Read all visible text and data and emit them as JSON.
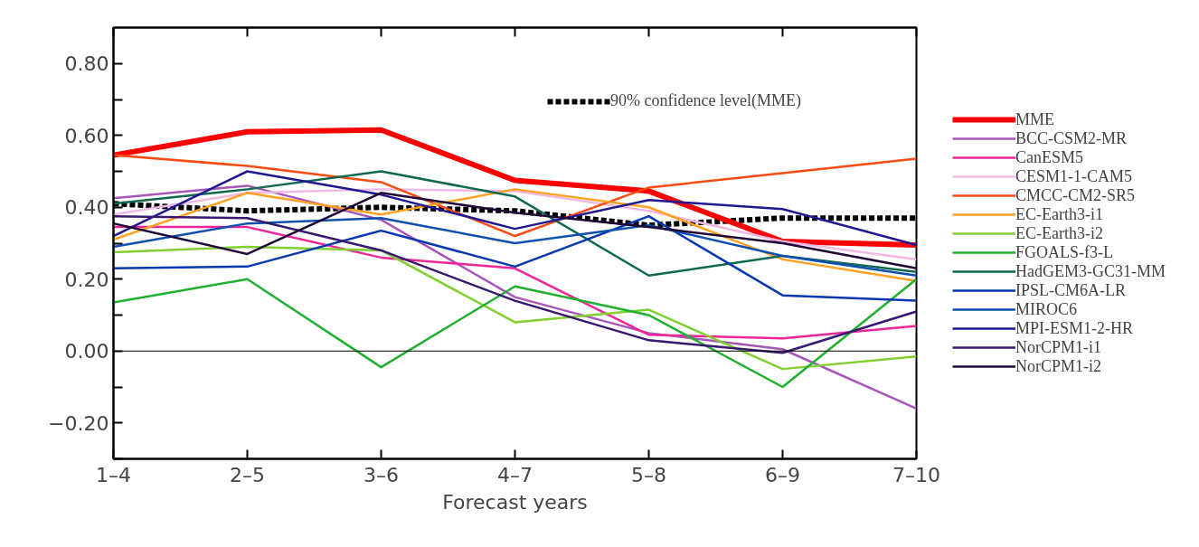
{
  "chart_data": {
    "type": "line",
    "xlabel": "Forecast years",
    "categories": [
      "1–4",
      "2–5",
      "3–6",
      "4–7",
      "5–8",
      "6–9",
      "7–10"
    ],
    "ylim": [
      -0.3,
      0.9
    ],
    "yticks": [
      {
        "value": -0.3,
        "label": null
      },
      {
        "value": -0.2,
        "label": "−0.20"
      },
      {
        "value": -0.1,
        "label": null
      },
      {
        "value": 0,
        "label": "0.00"
      },
      {
        "value": 0.1,
        "label": null
      },
      {
        "value": 0.2,
        "label": "0.20"
      },
      {
        "value": 0.3,
        "label": null
      },
      {
        "value": 0.4,
        "label": "0.40"
      },
      {
        "value": 0.5,
        "label": null
      },
      {
        "value": 0.6,
        "label": "0.60"
      },
      {
        "value": 0.7,
        "label": null
      },
      {
        "value": 0.8,
        "label": "0.80"
      }
    ],
    "ref_lines": [
      {
        "axis": "y",
        "value": 0,
        "color": "#000000"
      }
    ],
    "legend": "right",
    "grid": false,
    "marker": "none",
    "line_style": "solid",
    "series": [
      {
        "name": "90% confidence level(MME)",
        "color": "#000000",
        "line_style": "dashed",
        "values": [
          0.41,
          0.39,
          0.4,
          0.39,
          0.35,
          0.37,
          0.37
        ]
      },
      {
        "name": "MME",
        "color": "#ff0000",
        "values": [
          0.545,
          0.61,
          0.615,
          0.475,
          0.445,
          0.305,
          0.295
        ]
      },
      {
        "name": "BCC-CSM2-MR",
        "color": "#a656b8",
        "values": [
          0.425,
          0.46,
          0.365,
          0.15,
          0.05,
          0.005,
          -0.16
        ]
      },
      {
        "name": "CanESM5",
        "color": "#f0259a",
        "values": [
          0.345,
          0.345,
          0.26,
          0.23,
          0.045,
          0.035,
          0.07
        ]
      },
      {
        "name": "CESM1-1-CAM5",
        "color": "#f0b8e4",
        "values": [
          0.38,
          0.44,
          0.45,
          0.445,
          0.39,
          0.305,
          0.255
        ]
      },
      {
        "name": "CMCC-CM2-SR5",
        "color": "#ff4a10",
        "values": [
          0.545,
          0.515,
          0.47,
          0.32,
          0.455,
          0.495,
          0.535
        ]
      },
      {
        "name": "EC-Earth3-i1",
        "color": "#ffa020",
        "values": [
          0.31,
          0.44,
          0.38,
          0.45,
          0.4,
          0.255,
          0.195
        ]
      },
      {
        "name": "EC-Earth3-i2",
        "color": "#80d030",
        "values": [
          0.275,
          0.29,
          0.28,
          0.08,
          0.115,
          -0.05,
          -0.015
        ]
      },
      {
        "name": "FGOALS-f3-L",
        "color": "#20b030",
        "values": [
          0.135,
          0.2,
          -0.045,
          0.18,
          0.1,
          -0.1,
          0.2
        ]
      },
      {
        "name": "HadGEM3-GC31-MM",
        "color": "#106850",
        "values": [
          0.41,
          0.45,
          0.5,
          0.43,
          0.21,
          0.265,
          0.22
        ]
      },
      {
        "name": "IPSL-CM6A-LR",
        "color": "#0838b0",
        "values": [
          0.23,
          0.235,
          0.335,
          0.235,
          0.375,
          0.155,
          0.14
        ]
      },
      {
        "name": "MIROC6",
        "color": "#1050b0",
        "values": [
          0.29,
          0.355,
          0.37,
          0.3,
          0.35,
          0.265,
          0.21
        ]
      },
      {
        "name": "MPI-ESM1-2-HR",
        "color": "#201890",
        "values": [
          0.32,
          0.5,
          0.435,
          0.34,
          0.42,
          0.395,
          0.295
        ]
      },
      {
        "name": "NorCPM1-i1",
        "color": "#381870",
        "values": [
          0.375,
          0.37,
          0.28,
          0.14,
          0.03,
          -0.005,
          0.11
        ]
      },
      {
        "name": "NorCPM1-i2",
        "color": "#200838",
        "values": [
          0.355,
          0.27,
          0.44,
          0.385,
          0.345,
          0.3,
          0.23
        ]
      }
    ]
  }
}
